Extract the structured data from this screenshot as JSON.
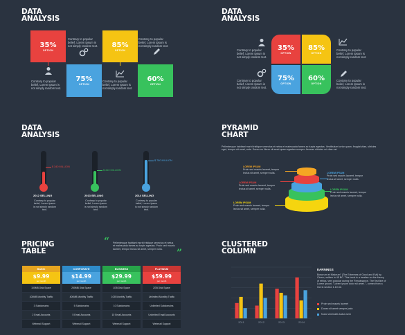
{
  "desc_text": "Contrary to popular belief, Lorem Ipsum is not simply random text.",
  "panel1": {
    "title1": "DATA",
    "title2": "ANALYSIS",
    "boxes": [
      {
        "pct": "35%",
        "label": "OPTION",
        "color": "#e8423f"
      },
      {
        "pct": "85%",
        "label": "OPTION",
        "color": "#f5c413"
      },
      {
        "pct": "75%",
        "label": "OPTION",
        "color": "#4aa3df"
      },
      {
        "pct": "60%",
        "label": "OPTION",
        "color": "#38c25d"
      }
    ]
  },
  "panel2": {
    "title1": "DATA",
    "title2": "ANALYSIS",
    "quads": [
      {
        "pct": "35%",
        "label": "OPTION",
        "color": "#e8423f"
      },
      {
        "pct": "85%",
        "label": "OPTION",
        "color": "#f5c413"
      },
      {
        "pct": "75%",
        "label": "OPTION",
        "color": "#4aa3df"
      },
      {
        "pct": "60%",
        "label": "OPTION",
        "color": "#38c25d"
      }
    ]
  },
  "panel3": {
    "title1": "DATA",
    "title2": "ANALYSIS",
    "thermos": [
      {
        "value": "$ 340 MILLION",
        "year": "2012 SELLING",
        "color": "#e8423f",
        "level": 0.42
      },
      {
        "value": "$ 410 MILLION",
        "year": "2013 SELLING",
        "color": "#38c25d",
        "level": 0.45
      },
      {
        "value": "$ 780 MILLION",
        "year": "2014 SELLING",
        "color": "#4aa3df",
        "level": 0.75
      }
    ]
  },
  "panel4": {
    "title1": "PYRAMID",
    "title2": "CHART",
    "intro": "Pellentesque habitant morbi tristique senectus et netus et malesuada fames ac turpis egestas. Vestibulum tortor quam, feugiat vitae, ultricies eget, tempor sit amet, ante. Donec eu libero sit amet quam egestas semper. Aenean ultricies mi vitae est.",
    "label_heading": "LOREM IPSUM",
    "label_text": "Proin sed mauris laoreet, tempor lectus sit amet, semper nulla.",
    "tiers": [
      "#f5a623",
      "#e8423f",
      "#4aa3df",
      "#38c25d",
      "#f5d50f"
    ]
  },
  "panel5": {
    "title1": "PRICING",
    "title2": "TABLE",
    "quote": "Pellentesque habitant morbi tristique senectus et netus et malesuada fames ac turpis egestas. Proin sed mauris laoreet, tempor lectus sit amet, semper nulla.",
    "plans": [
      {
        "name": "BASIC",
        "price": "$9.99",
        "per": "per month",
        "head_color": "#e5a420",
        "price_color": "#f5c413",
        "rows": [
          "100MB Disk Space",
          "100MB Monthly Traffic",
          "3 Subdomains",
          "2 Email Accounts",
          "Webmail Support"
        ]
      },
      {
        "name": "CORPORATE",
        "price": "$14.99",
        "per": "per month",
        "head_color": "#2f8bc9",
        "price_color": "#4aa3df",
        "rows": [
          "250MB Disk Space",
          "400MB Monthly Traffic",
          "5 Subdomains",
          "5 Email Accounts",
          "Webmail Support"
        ]
      },
      {
        "name": "BUSINESS",
        "price": "$29.99",
        "per": "per month",
        "head_color": "#27a349",
        "price_color": "#38c25d",
        "rows": [
          "1GB Disk Space",
          "1GB Monthly Traffic",
          "10 Subdomains",
          "10 Email Accounts",
          "Webmail Support"
        ]
      },
      {
        "name": "PLATINUM",
        "price": "$59.99",
        "per": "per month",
        "head_color": "#c93633",
        "price_color": "#e8423f",
        "rows": [
          "2GB Disk Space",
          "Unlimited Monthly Traffic",
          "Unlimited Subdomains",
          "Unlimited Email Accounts",
          "Webmail Support"
        ]
      }
    ]
  },
  "panel6": {
    "title1": "CLUSTERED",
    "title2": "COLUMN",
    "earnings_title": "EARNINGS",
    "earnings_text": "Bonorum et Malorum\" (The Extremes of Good and Evil) by Cicero, written in 45 BC. This book is a treatise on the theory of ethics, very popular during the Renaissance. The first line of Lorem Ipsum, \"Lorem ipsum dolor sit amet..\", comes from a line in section 1.10.32.",
    "legend": [
      {
        "name": "Proin sed mauris laoreet",
        "color": "#e8423f"
      },
      {
        "name": "Donec sit amet semper justo",
        "color": "#f5c413"
      },
      {
        "name": "Nunc venenatis luctus sem",
        "color": "#4aa3df"
      }
    ]
  },
  "chart_data": {
    "type": "bar",
    "categories": [
      "2011",
      "2012",
      "2013",
      "2014"
    ],
    "series": [
      {
        "name": "Proin sed mauris laoreet",
        "values": [
          30,
          25,
          58,
          80
        ]
      },
      {
        "name": "Donec sit amet semper justo",
        "values": [
          42,
          68,
          50,
          35
        ]
      },
      {
        "name": "Nunc venenatis luctus sem",
        "values": [
          20,
          40,
          45,
          55
        ]
      }
    ],
    "ylim": [
      0,
      100
    ],
    "colors": [
      "#e8423f",
      "#f5c413",
      "#4aa3df"
    ]
  }
}
